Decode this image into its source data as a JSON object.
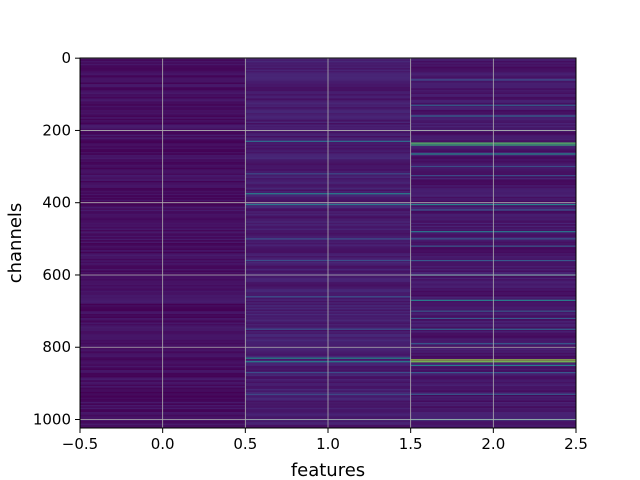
{
  "chart_data": {
    "type": "heatmap",
    "colormap": "viridis",
    "xlabel": "features",
    "ylabel": "channels",
    "xlim": [
      -0.5,
      2.5
    ],
    "ylim": [
      1023.5,
      -0.5
    ],
    "xticks": [
      -0.5,
      0.0,
      0.5,
      1.0,
      1.5,
      2.0,
      2.5
    ],
    "xtick_labels": [
      "−0.5",
      "0.0",
      "0.5",
      "1.0",
      "1.5",
      "2.0",
      "2.5"
    ],
    "yticks": [
      0,
      200,
      400,
      600,
      800,
      1000
    ],
    "ytick_labels": [
      "0",
      "200",
      "400",
      "600",
      "800",
      "1000"
    ],
    "grid": true,
    "columns": [
      0,
      1,
      2
    ],
    "rows": 1024,
    "background_levels": [
      0.05,
      0.1,
      0.08
    ],
    "bright_rows": {
      "1": [
        [
          230,
          0.45
        ],
        [
          320,
          0.3
        ],
        [
          375,
          0.55
        ],
        [
          405,
          0.5
        ],
        [
          500,
          0.3
        ],
        [
          560,
          0.3
        ],
        [
          660,
          0.3
        ],
        [
          750,
          0.3
        ],
        [
          830,
          0.6
        ],
        [
          840,
          0.55
        ],
        [
          870,
          0.3
        ],
        [
          930,
          0.3
        ],
        [
          1000,
          0.3
        ]
      ],
      "2": [
        [
          60,
          0.3
        ],
        [
          130,
          0.4
        ],
        [
          160,
          0.4
        ],
        [
          200,
          0.3
        ],
        [
          235,
          0.8
        ],
        [
          240,
          0.75
        ],
        [
          265,
          0.6
        ],
        [
          300,
          0.3
        ],
        [
          325,
          0.3
        ],
        [
          405,
          0.55
        ],
        [
          420,
          0.35
        ],
        [
          480,
          0.5
        ],
        [
          500,
          0.35
        ],
        [
          520,
          0.35
        ],
        [
          560,
          0.35
        ],
        [
          600,
          0.5
        ],
        [
          670,
          0.55
        ],
        [
          700,
          0.35
        ],
        [
          720,
          0.35
        ],
        [
          750,
          0.4
        ],
        [
          790,
          0.35
        ],
        [
          835,
          0.9
        ],
        [
          840,
          0.85
        ],
        [
          850,
          0.55
        ],
        [
          870,
          0.35
        ],
        [
          930,
          0.35
        ],
        [
          1000,
          0.55
        ]
      ]
    }
  }
}
